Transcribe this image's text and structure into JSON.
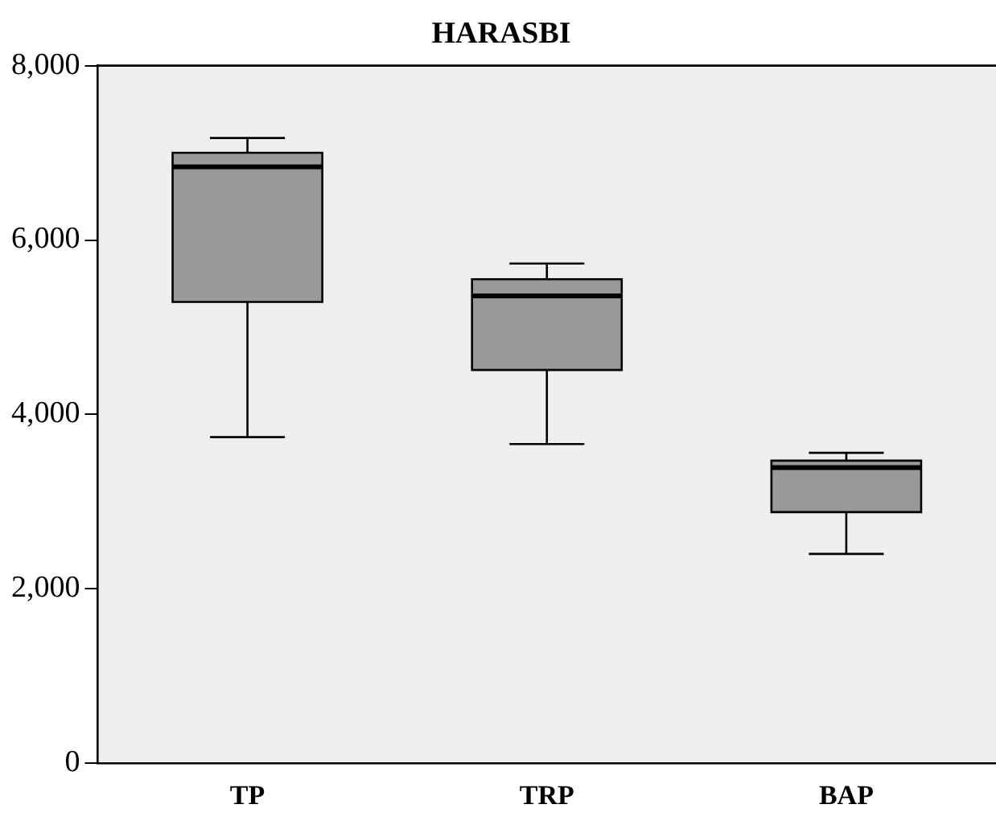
{
  "chart_data": {
    "type": "box",
    "title": "HARASBI",
    "categories": [
      "TP",
      "TRP",
      "BAP"
    ],
    "color": "#999999",
    "boxes": [
      {
        "low": 3740,
        "q1": 5290,
        "median": 6840,
        "q3": 7000,
        "high": 7170
      },
      {
        "low": 3660,
        "q1": 4510,
        "median": 5360,
        "q3": 5550,
        "high": 5730
      },
      {
        "low": 2400,
        "q1": 2880,
        "median": 3390,
        "q3": 3470,
        "high": 3560
      }
    ],
    "ylim": [
      0,
      8000
    ],
    "yticks": [
      {
        "value": 0,
        "label": "0"
      },
      {
        "value": 2000,
        "label": "2,000"
      },
      {
        "value": 4000,
        "label": "4,000"
      },
      {
        "value": 6000,
        "label": "6,000"
      },
      {
        "value": 8000,
        "label": "8,000"
      }
    ],
    "grid": false,
    "legend": false
  }
}
